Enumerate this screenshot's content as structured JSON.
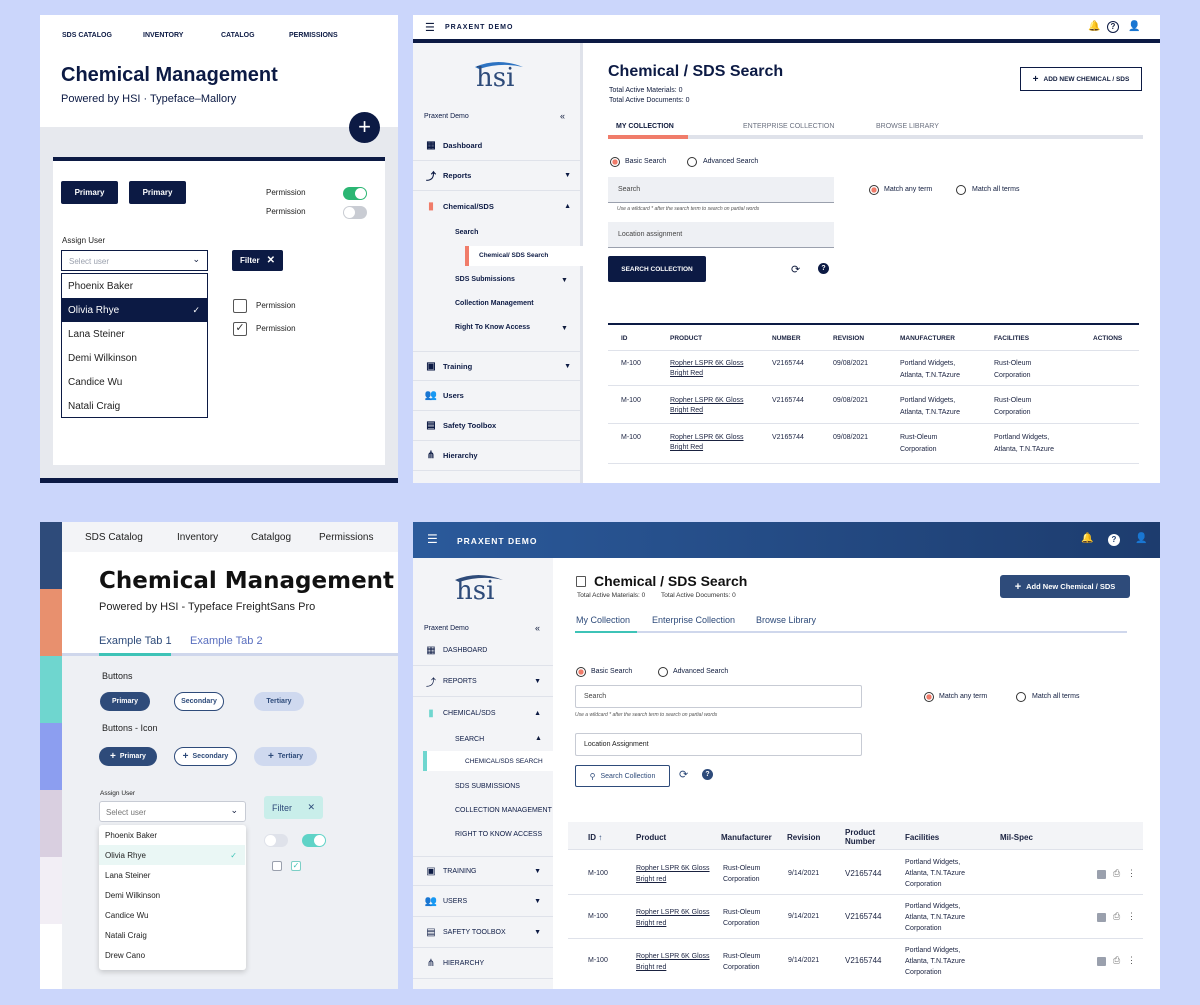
{
  "panel1": {
    "nav": [
      "SDS CATALOG",
      "INVENTORY",
      "CATALOG",
      "PERMISSIONS"
    ],
    "title": "Chemical Management",
    "subtitle": "Powered by HSI · Typeface–Mallory",
    "buttons": [
      "Primary",
      "Primary"
    ],
    "permission_labels": [
      "Permission",
      "Permission"
    ],
    "assign_label": "Assign User",
    "select_placeholder": "Select user",
    "filter_label": "Filter",
    "checkbox_labels": [
      "Permission",
      "Permission"
    ],
    "users": [
      "Phoenix Baker",
      "Olivia Rhye",
      "Lana Steiner",
      "Demi Wilkinson",
      "Candice Wu",
      "Natali Craig"
    ]
  },
  "panel2": {
    "app_title": "PRAXENT DEMO",
    "logo_text": "hsi",
    "org": "Praxent Demo",
    "collapse": "«",
    "sidebar": [
      "Dashboard",
      "Reports",
      "Chemical/SDS",
      "Training",
      "Users",
      "Safety Toolbox",
      "Hierarchy"
    ],
    "sub": [
      "Search",
      "Chemical/ SDS Search",
      "SDS Submissions",
      "Collection Management",
      "Right To Know Access"
    ],
    "page_title": "Chemical / SDS Search",
    "stats": [
      "Total Active Materials: 0",
      "Total Active Documents: 0"
    ],
    "add_button": "ADD NEW CHEMICAL / SDS",
    "tabs": [
      "MY COLLECTION",
      "ENTERPRISE COLLECTION",
      "BROWSE LIBRARY"
    ],
    "search_modes": [
      "Basic Search",
      "Advanced Search"
    ],
    "search_placeholder": "Search",
    "hint": "Use a wildcard * after the search term to search on partial words",
    "location_placeholder": "Location assignment",
    "match": [
      "Match any term",
      "Match all terms"
    ],
    "search_button": "SEARCH COLLECTION",
    "columns": [
      "ID",
      "PRODUCT",
      "NUMBER",
      "REVISION",
      "MANUFACTURER",
      "FACILITIES",
      "ACTIONS"
    ],
    "rows": [
      {
        "id": "M-100",
        "product1": "Ropher LSPR 6K Gloss",
        "product2": "Bright Red",
        "number": "V2165744",
        "revision": "09/08/2021",
        "man1": "Portland Widgets,",
        "man2": "Atlanta, T.N.TAzure",
        "fac1": "Rust-Oleum",
        "fac2": "Corporation"
      },
      {
        "id": "M-100",
        "product1": "Ropher LSPR 6K Gloss",
        "product2": "Bright Red",
        "number": "V2165744",
        "revision": "09/08/2021",
        "man1": "Portland Widgets,",
        "man2": "Atlanta, T.N.TAzure",
        "fac1": "Rust-Oleum",
        "fac2": "Corporation"
      },
      {
        "id": "M-100",
        "product1": "Ropher LSPR 6K Gloss",
        "product2": "Bright Red",
        "number": "V2165744",
        "revision": "09/08/2021",
        "man1": "Rust-Oleum",
        "man2": "Corporation",
        "fac1": "Portland Widgets,",
        "fac2": "Atlanta, T.N.TAzure"
      }
    ]
  },
  "panel3": {
    "nav": [
      "SDS Catalog",
      "Inventory",
      "Catalgog",
      "Permissions"
    ],
    "title": "Chemical Management",
    "subtitle": "Powered by HSI - Typeface FreightSans Pro",
    "tabs": [
      "Example Tab 1",
      "Example Tab 2"
    ],
    "buttons_label": "Buttons",
    "buttons": [
      "Primary",
      "Secondary",
      "Tertiary"
    ],
    "buttons_icon_label": "Buttons - Icon",
    "icon_buttons": [
      "Primary",
      "Secondary",
      "Tertiary"
    ],
    "assign_label": "Assign User",
    "select_placeholder": "Select user",
    "filter_label": "Filter",
    "users": [
      "Phoenix Baker",
      "Olivia Rhye",
      "Lana Steiner",
      "Demi Wilkinson",
      "Candice Wu",
      "Natali Craig",
      "Drew Cano"
    ],
    "palette": [
      "#2e4b7a",
      "#e8906e",
      "#6fd6cf",
      "#8c9ef0",
      "#d9cfe0",
      "#f2eef5"
    ]
  },
  "panel4": {
    "app_title": "PRAXENT DEMO",
    "logo_text": "hsi",
    "org": "Praxent Demo",
    "collapse": "«",
    "sidebar": [
      "DASHBOARD",
      "REPORTS",
      "CHEMICAL/SDS",
      "TRAINING",
      "USERS",
      "SAFETY TOOLBOX",
      "HIERARCHY"
    ],
    "sub": [
      "SEARCH",
      "CHEMICAL/SDS SEARCH",
      "SDS SUBMISSIONS",
      "COLLECTION MANAGEMENT",
      "RIGHT TO KNOW ACCESS"
    ],
    "page_title": "Chemical / SDS Search",
    "stats": [
      "Total Active Materials: 0",
      "Total Active Documents: 0"
    ],
    "add_button": "Add New Chemical / SDS",
    "tabs": [
      "My Collection",
      "Enterprise Collection",
      "Browse Library"
    ],
    "search_modes": [
      "Basic Search",
      "Advanced Search"
    ],
    "search_placeholder": "Search",
    "hint": "Use a wildcard * after the search term to search on partial words",
    "location_placeholder": "Location Assignment",
    "match": [
      "Match any term",
      "Match all terms"
    ],
    "search_button": "Search Collection",
    "columns": [
      "ID",
      "Product",
      "Manufacturer",
      "Revision",
      "Product Number",
      "Facilities",
      "Mil-Spec"
    ],
    "rows": [
      {
        "id": "M-100",
        "product1": "Ropher LSPR 6K Gloss",
        "product2": "Bright red",
        "man1": "Rust-Oleum",
        "man2": "Corporation",
        "revision": "9/14/2021",
        "number": "V2165744",
        "fac1": "Portland Widgets,",
        "fac2": "Atlanta, T.N.TAzure",
        "fac3": "Corporation"
      },
      {
        "id": "M-100",
        "product1": "Ropher LSPR 6K Gloss",
        "product2": "Bright red",
        "man1": "Rust-Oleum",
        "man2": "Corporation",
        "revision": "9/14/2021",
        "number": "V2165744",
        "fac1": "Portland Widgets,",
        "fac2": "Atlanta, T.N.TAzure",
        "fac3": "Corporation"
      },
      {
        "id": "M-100",
        "product1": "Ropher LSPR 6K Gloss",
        "product2": "Bright red",
        "man1": "Rust-Oleum",
        "man2": "Corporation",
        "revision": "9/14/2021",
        "number": "V2165744",
        "fac1": "Portland Widgets,",
        "fac2": "Atlanta, T.N.TAzure",
        "fac3": "Corporation"
      }
    ]
  }
}
